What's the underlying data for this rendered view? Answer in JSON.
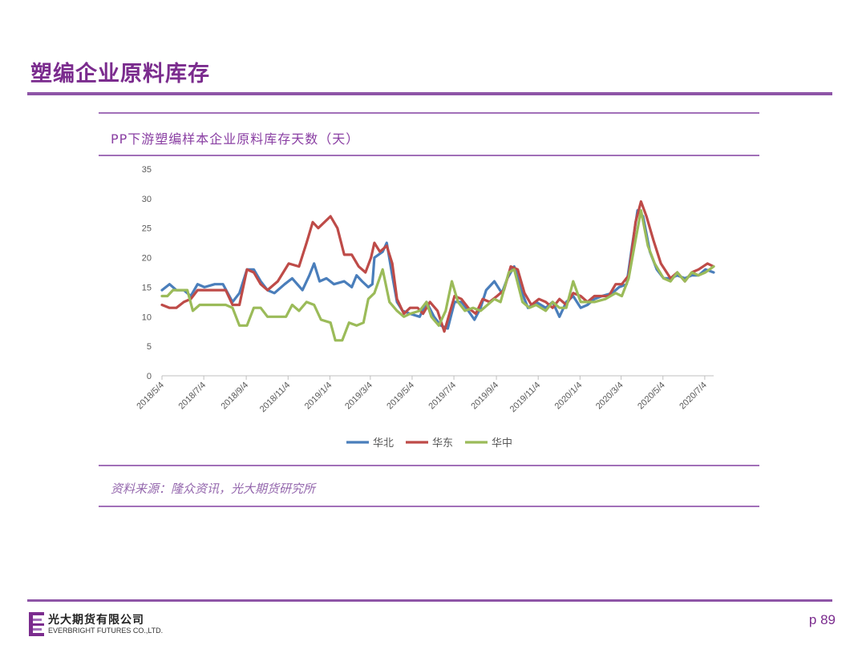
{
  "page": {
    "title": "塑编企业原料库存",
    "page_number": "p 89",
    "source": "资料来源：隆众资讯，光大期货研究所"
  },
  "logo": {
    "cn": "光大期货有限公司",
    "en": "EVERBRIGHT FUTURES CO.,LTD."
  },
  "colors": {
    "brand_purple": "#7b2c8e",
    "rule_purple": "#8e55a7"
  },
  "chart_data": {
    "type": "line",
    "title": "PP下游塑编样本企业原料库存天数（天）",
    "xlabel": "",
    "ylabel": "",
    "ylim": [
      0,
      35
    ],
    "yticks": [
      0,
      5,
      10,
      15,
      20,
      25,
      30,
      35
    ],
    "x_range": [
      "2018-05-04",
      "2020-07-17"
    ],
    "xticks": [
      "2018/5/4",
      "2018/7/4",
      "2018/9/4",
      "2018/11/4",
      "2019/1/4",
      "2019/3/4",
      "2019/5/4",
      "2019/7/4",
      "2019/9/4",
      "2019/11/4",
      "2020/1/4",
      "2020/3/4",
      "2020/5/4",
      "2020/7/4"
    ],
    "xtick_dates": [
      "2018-05-04",
      "2018-07-04",
      "2018-09-04",
      "2018-11-04",
      "2019-01-04",
      "2019-03-04",
      "2019-05-04",
      "2019-07-04",
      "2019-09-04",
      "2019-11-04",
      "2020-01-04",
      "2020-03-04",
      "2020-05-04",
      "2020-07-04"
    ],
    "grid": false,
    "legend_position": "bottom",
    "series": [
      {
        "name": "华北",
        "color": "#4a7ebb",
        "points": [
          [
            "2018-05-04",
            14.5
          ],
          [
            "2018-05-15",
            15.5
          ],
          [
            "2018-05-25",
            14.5
          ],
          [
            "2018-06-05",
            14.5
          ],
          [
            "2018-06-15",
            13.5
          ],
          [
            "2018-06-25",
            15.5
          ],
          [
            "2018-07-05",
            15.0
          ],
          [
            "2018-07-20",
            15.5
          ],
          [
            "2018-08-01",
            15.5
          ],
          [
            "2018-08-15",
            12.5
          ],
          [
            "2018-08-25",
            14.0
          ],
          [
            "2018-09-05",
            18.0
          ],
          [
            "2018-09-15",
            18.0
          ],
          [
            "2018-09-25",
            16.0
          ],
          [
            "2018-10-05",
            14.5
          ],
          [
            "2018-10-15",
            14.0
          ],
          [
            "2018-10-30",
            15.5
          ],
          [
            "2018-11-10",
            16.5
          ],
          [
            "2018-11-25",
            14.5
          ],
          [
            "2018-12-05",
            17.0
          ],
          [
            "2018-12-12",
            19.0
          ],
          [
            "2018-12-20",
            16.0
          ],
          [
            "2018-12-30",
            16.5
          ],
          [
            "2019-01-10",
            15.5
          ],
          [
            "2019-01-25",
            16.0
          ],
          [
            "2019-02-05",
            15.0
          ],
          [
            "2019-02-12",
            17.0
          ],
          [
            "2019-02-20",
            16.0
          ],
          [
            "2019-03-01",
            15.0
          ],
          [
            "2019-03-07",
            15.5
          ],
          [
            "2019-03-10",
            20.0
          ],
          [
            "2019-03-22",
            21.0
          ],
          [
            "2019-03-28",
            22.5
          ],
          [
            "2019-04-05",
            17.0
          ],
          [
            "2019-04-12",
            12.5
          ],
          [
            "2019-04-20",
            11.0
          ],
          [
            "2019-05-01",
            10.5
          ],
          [
            "2019-05-15",
            10.0
          ],
          [
            "2019-05-25",
            12.5
          ],
          [
            "2019-06-05",
            10.0
          ],
          [
            "2019-06-15",
            8.5
          ],
          [
            "2019-06-25",
            8.0
          ],
          [
            "2019-07-05",
            12.5
          ],
          [
            "2019-07-15",
            12.5
          ],
          [
            "2019-07-25",
            11.0
          ],
          [
            "2019-08-03",
            9.5
          ],
          [
            "2019-08-12",
            11.5
          ],
          [
            "2019-08-20",
            14.5
          ],
          [
            "2019-09-01",
            16.0
          ],
          [
            "2019-09-12",
            14.0
          ],
          [
            "2019-09-20",
            16.5
          ],
          [
            "2019-09-30",
            18.5
          ],
          [
            "2019-10-10",
            14.5
          ],
          [
            "2019-10-20",
            11.5
          ],
          [
            "2019-11-01",
            12.5
          ],
          [
            "2019-11-15",
            11.5
          ],
          [
            "2019-11-25",
            12.5
          ],
          [
            "2019-12-05",
            10.0
          ],
          [
            "2019-12-15",
            12.5
          ],
          [
            "2019-12-25",
            13.5
          ],
          [
            "2020-01-05",
            11.5
          ],
          [
            "2020-01-15",
            12.0
          ],
          [
            "2020-01-25",
            13.0
          ],
          [
            "2020-02-05",
            13.5
          ],
          [
            "2020-02-20",
            14.0
          ],
          [
            "2020-03-01",
            15.0
          ],
          [
            "2020-03-12",
            15.5
          ],
          [
            "2020-03-20",
            22.0
          ],
          [
            "2020-03-28",
            28.0
          ],
          [
            "2020-04-05",
            27.0
          ],
          [
            "2020-04-15",
            21.0
          ],
          [
            "2020-04-25",
            18.0
          ],
          [
            "2020-05-05",
            16.5
          ],
          [
            "2020-05-15",
            16.5
          ],
          [
            "2020-05-25",
            17.0
          ],
          [
            "2020-06-05",
            16.5
          ],
          [
            "2020-06-15",
            17.0
          ],
          [
            "2020-06-25",
            17.0
          ],
          [
            "2020-07-05",
            18.0
          ],
          [
            "2020-07-17",
            17.5
          ]
        ]
      },
      {
        "name": "华东",
        "color": "#be4b48",
        "points": [
          [
            "2018-05-04",
            12.0
          ],
          [
            "2018-05-15",
            11.5
          ],
          [
            "2018-05-25",
            11.5
          ],
          [
            "2018-06-05",
            12.5
          ],
          [
            "2018-06-15",
            13.0
          ],
          [
            "2018-06-25",
            14.5
          ],
          [
            "2018-07-05",
            14.5
          ],
          [
            "2018-07-25",
            14.5
          ],
          [
            "2018-08-05",
            14.5
          ],
          [
            "2018-08-15",
            12.0
          ],
          [
            "2018-08-25",
            12.0
          ],
          [
            "2018-09-05",
            18.0
          ],
          [
            "2018-09-15",
            17.5
          ],
          [
            "2018-09-25",
            15.5
          ],
          [
            "2018-10-05",
            14.5
          ],
          [
            "2018-10-20",
            16.0
          ],
          [
            "2018-11-05",
            19.0
          ],
          [
            "2018-11-20",
            18.5
          ],
          [
            "2018-12-01",
            22.5
          ],
          [
            "2018-12-10",
            26.0
          ],
          [
            "2018-12-18",
            25.0
          ],
          [
            "2019-01-05",
            27.0
          ],
          [
            "2019-01-15",
            25.0
          ],
          [
            "2019-01-25",
            20.5
          ],
          [
            "2019-02-05",
            20.5
          ],
          [
            "2019-02-15",
            18.5
          ],
          [
            "2019-02-25",
            17.5
          ],
          [
            "2019-03-05",
            20.0
          ],
          [
            "2019-03-10",
            22.5
          ],
          [
            "2019-03-18",
            21.0
          ],
          [
            "2019-03-28",
            22.0
          ],
          [
            "2019-04-05",
            19.0
          ],
          [
            "2019-04-12",
            13.0
          ],
          [
            "2019-04-22",
            10.5
          ],
          [
            "2019-05-01",
            11.5
          ],
          [
            "2019-05-12",
            11.5
          ],
          [
            "2019-05-20",
            10.5
          ],
          [
            "2019-05-30",
            12.5
          ],
          [
            "2019-06-10",
            11.0
          ],
          [
            "2019-06-20",
            7.5
          ],
          [
            "2019-07-05",
            13.5
          ],
          [
            "2019-07-15",
            13.0
          ],
          [
            "2019-07-25",
            11.5
          ],
          [
            "2019-08-05",
            10.5
          ],
          [
            "2019-08-15",
            13.0
          ],
          [
            "2019-08-25",
            12.5
          ],
          [
            "2019-09-05",
            13.5
          ],
          [
            "2019-09-15",
            14.5
          ],
          [
            "2019-09-25",
            18.5
          ],
          [
            "2019-10-05",
            18.0
          ],
          [
            "2019-10-15",
            14.0
          ],
          [
            "2019-10-25",
            12.0
          ],
          [
            "2019-11-05",
            13.0
          ],
          [
            "2019-11-15",
            12.5
          ],
          [
            "2019-11-25",
            11.5
          ],
          [
            "2019-12-05",
            13.0
          ],
          [
            "2019-12-15",
            12.0
          ],
          [
            "2019-12-25",
            14.0
          ],
          [
            "2020-01-05",
            13.5
          ],
          [
            "2020-01-15",
            12.5
          ],
          [
            "2020-01-25",
            13.5
          ],
          [
            "2020-02-05",
            13.5
          ],
          [
            "2020-02-15",
            13.5
          ],
          [
            "2020-02-25",
            15.5
          ],
          [
            "2020-03-05",
            15.5
          ],
          [
            "2020-03-15",
            17.0
          ],
          [
            "2020-03-25",
            26.0
          ],
          [
            "2020-04-02",
            29.5
          ],
          [
            "2020-04-10",
            27.0
          ],
          [
            "2020-04-20",
            23.0
          ],
          [
            "2020-05-01",
            19.0
          ],
          [
            "2020-05-15",
            16.5
          ],
          [
            "2020-05-25",
            17.5
          ],
          [
            "2020-06-05",
            16.0
          ],
          [
            "2020-06-15",
            17.5
          ],
          [
            "2020-06-25",
            18.0
          ],
          [
            "2020-07-08",
            19.0
          ],
          [
            "2020-07-17",
            18.5
          ]
        ]
      },
      {
        "name": "华中",
        "color": "#9bbb59",
        "points": [
          [
            "2018-05-04",
            13.5
          ],
          [
            "2018-05-12",
            13.5
          ],
          [
            "2018-05-20",
            14.5
          ],
          [
            "2018-05-30",
            14.5
          ],
          [
            "2018-06-10",
            14.5
          ],
          [
            "2018-06-18",
            11.0
          ],
          [
            "2018-06-28",
            12.0
          ],
          [
            "2018-07-10",
            12.0
          ],
          [
            "2018-07-25",
            12.0
          ],
          [
            "2018-08-05",
            12.0
          ],
          [
            "2018-08-15",
            11.5
          ],
          [
            "2018-08-25",
            8.5
          ],
          [
            "2018-09-05",
            8.5
          ],
          [
            "2018-09-15",
            11.5
          ],
          [
            "2018-09-25",
            11.5
          ],
          [
            "2018-10-05",
            10.0
          ],
          [
            "2018-10-20",
            10.0
          ],
          [
            "2018-11-01",
            10.0
          ],
          [
            "2018-11-10",
            12.0
          ],
          [
            "2018-11-20",
            11.0
          ],
          [
            "2018-12-01",
            12.5
          ],
          [
            "2018-12-12",
            12.0
          ],
          [
            "2018-12-22",
            9.5
          ],
          [
            "2019-01-05",
            9.0
          ],
          [
            "2019-01-12",
            6.0
          ],
          [
            "2019-01-22",
            6.0
          ],
          [
            "2019-02-01",
            9.0
          ],
          [
            "2019-02-12",
            8.5
          ],
          [
            "2019-02-22",
            9.0
          ],
          [
            "2019-03-01",
            13.0
          ],
          [
            "2019-03-10",
            14.0
          ],
          [
            "2019-03-22",
            18.0
          ],
          [
            "2019-04-01",
            12.5
          ],
          [
            "2019-04-12",
            11.0
          ],
          [
            "2019-04-22",
            10.0
          ],
          [
            "2019-05-01",
            10.5
          ],
          [
            "2019-05-15",
            11.0
          ],
          [
            "2019-05-25",
            12.5
          ],
          [
            "2019-06-01",
            10.0
          ],
          [
            "2019-06-12",
            8.5
          ],
          [
            "2019-06-22",
            11.0
          ],
          [
            "2019-07-01",
            16.0
          ],
          [
            "2019-07-10",
            12.5
          ],
          [
            "2019-07-20",
            11.0
          ],
          [
            "2019-08-01",
            11.5
          ],
          [
            "2019-08-12",
            11.0
          ],
          [
            "2019-08-22",
            12.0
          ],
          [
            "2019-09-01",
            13.0
          ],
          [
            "2019-09-10",
            12.5
          ],
          [
            "2019-09-22",
            17.5
          ],
          [
            "2019-09-30",
            18.0
          ],
          [
            "2019-10-12",
            12.5
          ],
          [
            "2019-10-22",
            11.5
          ],
          [
            "2019-11-01",
            12.0
          ],
          [
            "2019-11-15",
            11.0
          ],
          [
            "2019-11-25",
            12.5
          ],
          [
            "2019-12-05",
            11.5
          ],
          [
            "2019-12-15",
            11.5
          ],
          [
            "2019-12-25",
            16.0
          ],
          [
            "2020-01-05",
            12.5
          ],
          [
            "2020-01-15",
            12.5
          ],
          [
            "2020-01-25",
            12.5
          ],
          [
            "2020-02-10",
            13.0
          ],
          [
            "2020-02-25",
            14.0
          ],
          [
            "2020-03-05",
            13.5
          ],
          [
            "2020-03-15",
            16.5
          ],
          [
            "2020-03-25",
            23.0
          ],
          [
            "2020-04-02",
            28.0
          ],
          [
            "2020-04-12",
            22.0
          ],
          [
            "2020-04-22",
            19.0
          ],
          [
            "2020-05-05",
            16.5
          ],
          [
            "2020-05-15",
            16.0
          ],
          [
            "2020-05-25",
            17.5
          ],
          [
            "2020-06-05",
            16.0
          ],
          [
            "2020-06-15",
            17.5
          ],
          [
            "2020-06-25",
            17.0
          ],
          [
            "2020-07-05",
            17.5
          ],
          [
            "2020-07-17",
            18.5
          ]
        ]
      }
    ]
  }
}
